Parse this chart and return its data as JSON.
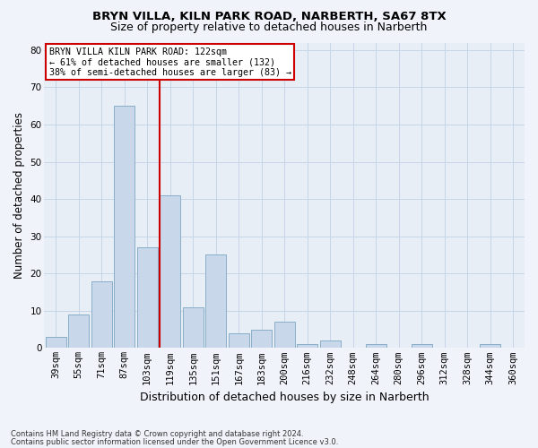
{
  "title1": "BRYN VILLA, KILN PARK ROAD, NARBERTH, SA67 8TX",
  "title2": "Size of property relative to detached houses in Narberth",
  "xlabel": "Distribution of detached houses by size in Narberth",
  "ylabel": "Number of detached properties",
  "categories": [
    "39sqm",
    "55sqm",
    "71sqm",
    "87sqm",
    "103sqm",
    "119sqm",
    "135sqm",
    "151sqm",
    "167sqm",
    "183sqm",
    "200sqm",
    "216sqm",
    "232sqm",
    "248sqm",
    "264sqm",
    "280sqm",
    "296sqm",
    "312sqm",
    "328sqm",
    "344sqm",
    "360sqm"
  ],
  "values": [
    3,
    9,
    18,
    65,
    27,
    41,
    11,
    25,
    4,
    5,
    7,
    1,
    2,
    0,
    1,
    0,
    1,
    0,
    0,
    1,
    0
  ],
  "bar_color": "#c8d8ea",
  "bar_edge_color": "#8aaec8",
  "vline_index": 5,
  "annotation_title": "BRYN VILLA KILN PARK ROAD: 122sqm",
  "annotation_line1": "← 61% of detached houses are smaller (132)",
  "annotation_line2": "38% of semi-detached houses are larger (83) →",
  "annotation_box_facecolor": "#ffffff",
  "annotation_box_edgecolor": "#cc0000",
  "vline_color": "#cc0000",
  "ylim": [
    0,
    82
  ],
  "yticks": [
    0,
    10,
    20,
    30,
    40,
    50,
    60,
    70,
    80
  ],
  "grid_color": "#c8d4e8",
  "plot_bg_color": "#e8eef6",
  "fig_bg_color": "#f0f4fa",
  "title1_fontsize": 9.5,
  "title2_fontsize": 9.0,
  "ylabel_fontsize": 8.5,
  "xlabel_fontsize": 9.0,
  "tick_fontsize": 7.5,
  "footnote1": "Contains HM Land Registry data © Crown copyright and database right 2024.",
  "footnote2": "Contains public sector information licensed under the Open Government Licence v3.0."
}
